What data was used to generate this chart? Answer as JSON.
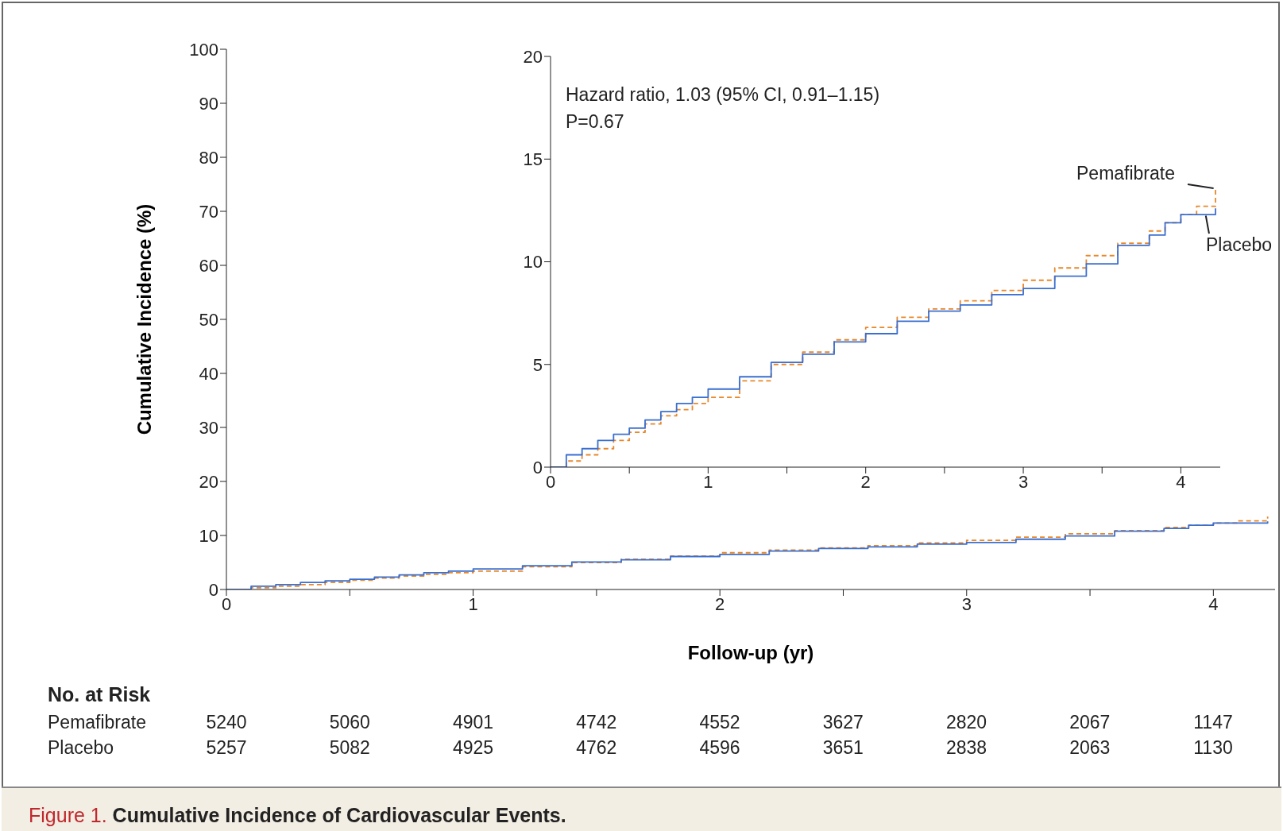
{
  "chart_data": [
    {
      "type": "step",
      "title": "Figure 1. Cumulative Incidence of Cardiovascular Events.",
      "annotations": [
        "No. at Risk",
        "Pemafibrate",
        "5240",
        "5060",
        "4901",
        "4742",
        "4552",
        "3627",
        "2820",
        "2067",
        "1147",
        "Placebo",
        "5257",
        "5082",
        "4925",
        "4762",
        "4596",
        "3651",
        "2838",
        "2063",
        "1130"
      ],
      "xlabel": "Follow-up (yr)",
      "ylabel": "Cumulative Incidence (%)",
      "xlim": [
        0,
        4.25
      ],
      "xticks": [
        0,
        {
          "value": 0.5,
          "label": null
        },
        1,
        {
          "value": 1.5,
          "label": null
        },
        2,
        {
          "value": 2.5,
          "label": null
        },
        3,
        {
          "value": 3.5,
          "label": null
        },
        4
      ],
      "ylim": [
        0,
        100
      ],
      "yticks": [
        0,
        10,
        20,
        30,
        40,
        50,
        60,
        70,
        80,
        90,
        100
      ],
      "grid": false,
      "legend": false,
      "series": [
        {
          "color": "#e8872a",
          "line_style": "dashed",
          "x": [
            0,
            0.1,
            0.2,
            0.3,
            0.4,
            0.5,
            0.6,
            0.7,
            0.8,
            0.9,
            1.0,
            1.2,
            1.4,
            1.6,
            1.8,
            2.0,
            2.2,
            2.4,
            2.6,
            2.8,
            3.0,
            3.2,
            3.4,
            3.6,
            3.8,
            3.9,
            4.0,
            4.1,
            4.22
          ],
          "values": [
            0,
            0.3,
            0.6,
            0.9,
            1.3,
            1.7,
            2.1,
            2.5,
            2.8,
            3.1,
            3.4,
            4.2,
            5.0,
            5.6,
            6.2,
            6.8,
            7.3,
            7.7,
            8.1,
            8.6,
            9.1,
            9.7,
            10.3,
            10.9,
            11.5,
            11.9,
            12.3,
            12.7,
            13.5
          ]
        },
        {
          "color": "#3a6fd0",
          "line_style": "solid",
          "x": [
            0,
            0.1,
            0.2,
            0.3,
            0.4,
            0.5,
            0.6,
            0.7,
            0.8,
            0.9,
            1.0,
            1.2,
            1.4,
            1.6,
            1.8,
            2.0,
            2.2,
            2.4,
            2.6,
            2.8,
            3.0,
            3.2,
            3.4,
            3.6,
            3.8,
            3.9,
            4.0,
            4.1,
            4.22
          ],
          "values": [
            0,
            0.6,
            0.9,
            1.3,
            1.6,
            1.9,
            2.3,
            2.7,
            3.1,
            3.4,
            3.8,
            4.4,
            5.1,
            5.5,
            6.1,
            6.5,
            7.1,
            7.6,
            7.9,
            8.4,
            8.7,
            9.3,
            9.9,
            10.8,
            11.3,
            11.9,
            12.3,
            12.3,
            12.6
          ]
        }
      ]
    },
    {
      "type": "step",
      "annotations": [
        "Hazard ratio, 1.03 (95% CI, 0.91–1.15)",
        "P=0.67"
      ],
      "xlim": [
        0,
        4.25
      ],
      "xticks": [
        0,
        {
          "value": 0.5,
          "label": null
        },
        1,
        {
          "value": 1.5,
          "label": null
        },
        2,
        {
          "value": 2.5,
          "label": null
        },
        3,
        {
          "value": 3.5,
          "label": null
        },
        4
      ],
      "ylim": [
        0,
        20
      ],
      "yticks": [
        0,
        5,
        10,
        15,
        20
      ],
      "grid": false,
      "legend": false,
      "series": [
        {
          "name": "Pemafibrate",
          "color": "#e8872a",
          "line_style": "dashed",
          "x": [
            0,
            0.1,
            0.2,
            0.3,
            0.4,
            0.5,
            0.6,
            0.7,
            0.8,
            0.9,
            1.0,
            1.2,
            1.4,
            1.6,
            1.8,
            2.0,
            2.2,
            2.4,
            2.6,
            2.8,
            3.0,
            3.2,
            3.4,
            3.6,
            3.8,
            3.9,
            4.0,
            4.1,
            4.22
          ],
          "values": [
            0,
            0.3,
            0.6,
            0.9,
            1.3,
            1.7,
            2.1,
            2.5,
            2.8,
            3.1,
            3.4,
            4.2,
            5.0,
            5.6,
            6.2,
            6.8,
            7.3,
            7.7,
            8.1,
            8.6,
            9.1,
            9.7,
            10.3,
            10.9,
            11.5,
            11.9,
            12.3,
            12.7,
            13.5
          ]
        },
        {
          "name": "Placebo",
          "color": "#3a6fd0",
          "line_style": "solid",
          "x": [
            0,
            0.1,
            0.2,
            0.3,
            0.4,
            0.5,
            0.6,
            0.7,
            0.8,
            0.9,
            1.0,
            1.2,
            1.4,
            1.6,
            1.8,
            2.0,
            2.2,
            2.4,
            2.6,
            2.8,
            3.0,
            3.2,
            3.4,
            3.6,
            3.8,
            3.9,
            4.0,
            4.1,
            4.22
          ],
          "values": [
            0,
            0.6,
            0.9,
            1.3,
            1.6,
            1.9,
            2.3,
            2.7,
            3.1,
            3.4,
            3.8,
            4.4,
            5.1,
            5.5,
            6.1,
            6.5,
            7.1,
            7.6,
            7.9,
            8.4,
            8.7,
            9.3,
            9.9,
            10.8,
            11.3,
            11.9,
            12.3,
            12.3,
            12.6
          ]
        }
      ]
    }
  ]
}
